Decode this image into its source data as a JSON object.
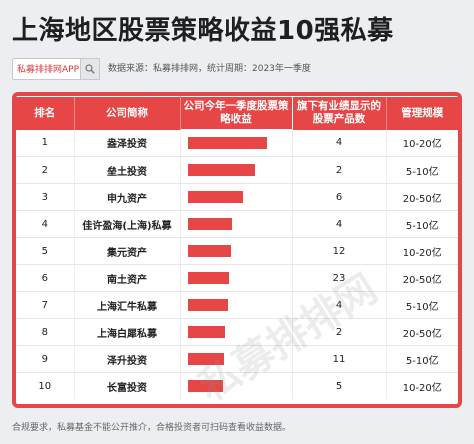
{
  "title": "上海地区股票策略收益10强私募",
  "search_label": "私募排排网APP",
  "source_text": "数据来源：私募排排网，统计周期：2023年一季度",
  "watermark": "私募排排网",
  "footer": "合规要求，私募基金不能公开推介，合格投资者可扫码查看收益数据。",
  "table": {
    "headers": [
      "排名",
      "公司简称",
      "公司今年一季度股票策略收益",
      "旗下有业绩显示的股票产品数",
      "管理规模"
    ],
    "rows": [
      {
        "rank": "1",
        "name": "盎泽投资",
        "products": "4",
        "scale": "10-20亿",
        "bar": 0.93
      },
      {
        "rank": "2",
        "name": "垒土投资",
        "products": "2",
        "scale": "5-10亿",
        "bar": 0.79
      },
      {
        "rank": "3",
        "name": "申九资产",
        "products": "6",
        "scale": "20-50亿",
        "bar": 0.65
      },
      {
        "rank": "4",
        "name": "佳许盈海(上海)私募",
        "products": "4",
        "scale": "5-10亿",
        "bar": 0.52
      },
      {
        "rank": "5",
        "name": "集元资产",
        "products": "12",
        "scale": "10-20亿",
        "bar": 0.5
      },
      {
        "rank": "6",
        "name": "南土资产",
        "products": "23",
        "scale": "20-50亿",
        "bar": 0.48
      },
      {
        "rank": "7",
        "name": "上海汇牛私募",
        "products": "4",
        "scale": "5-10亿",
        "bar": 0.47
      },
      {
        "rank": "8",
        "name": "上海白犀私募",
        "products": "2",
        "scale": "20-50亿",
        "bar": 0.44
      },
      {
        "rank": "9",
        "name": "泽升投资",
        "products": "11",
        "scale": "5-10亿",
        "bar": 0.42
      },
      {
        "rank": "10",
        "name": "长富投资",
        "products": "5",
        "scale": "10-20亿",
        "bar": 0.41
      }
    ]
  },
  "colors": {
    "accent": "#e64646"
  }
}
